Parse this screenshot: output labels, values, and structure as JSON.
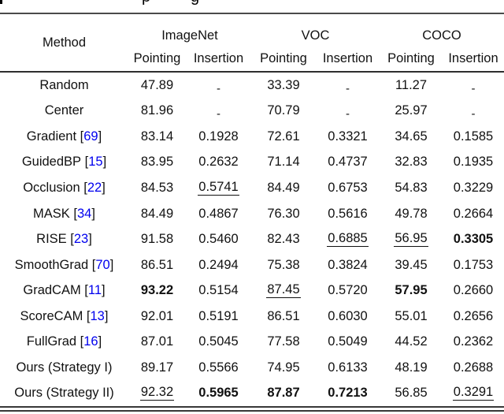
{
  "colors": {
    "citation": "#0000ee",
    "text": "#111111"
  },
  "caption_fragments": [
    {
      "char": "p"
    },
    {
      "char": "g"
    }
  ],
  "table": {
    "method_header": "Method",
    "groups": [
      {
        "label": "ImageNet"
      },
      {
        "label": "VOC"
      },
      {
        "label": "COCO"
      }
    ],
    "sub_headers": [
      "Pointing",
      "Insertion"
    ],
    "rows": [
      {
        "method": "Random",
        "cite": null,
        "values": [
          {
            "v": "47.89"
          },
          {
            "v": "-"
          },
          {
            "v": "33.39"
          },
          {
            "v": "-"
          },
          {
            "v": "11.27"
          },
          {
            "v": "-"
          }
        ]
      },
      {
        "method": "Center",
        "cite": null,
        "values": [
          {
            "v": "81.96"
          },
          {
            "v": "-"
          },
          {
            "v": "70.79"
          },
          {
            "v": "-"
          },
          {
            "v": "25.97"
          },
          {
            "v": "-"
          }
        ]
      },
      {
        "method": "Gradient",
        "cite": "69",
        "values": [
          {
            "v": "83.14"
          },
          {
            "v": "0.1928"
          },
          {
            "v": "72.61"
          },
          {
            "v": "0.3321"
          },
          {
            "v": "34.65"
          },
          {
            "v": "0.1585"
          }
        ]
      },
      {
        "method": "GuidedBP",
        "cite": "15",
        "values": [
          {
            "v": "83.95"
          },
          {
            "v": "0.2632"
          },
          {
            "v": "71.14"
          },
          {
            "v": "0.4737"
          },
          {
            "v": "32.83"
          },
          {
            "v": "0.1935"
          }
        ]
      },
      {
        "method": "Occlusion",
        "cite": "22",
        "values": [
          {
            "v": "84.53"
          },
          {
            "v": "0.5741",
            "u": true
          },
          {
            "v": "84.49"
          },
          {
            "v": "0.6753"
          },
          {
            "v": "54.83"
          },
          {
            "v": "0.3229"
          }
        ]
      },
      {
        "method": "MASK",
        "cite": "34",
        "values": [
          {
            "v": "84.49"
          },
          {
            "v": "0.4867"
          },
          {
            "v": "76.30"
          },
          {
            "v": "0.5616"
          },
          {
            "v": "49.78"
          },
          {
            "v": "0.2664"
          }
        ]
      },
      {
        "method": "RISE",
        "cite": "23",
        "values": [
          {
            "v": "91.58"
          },
          {
            "v": "0.5460"
          },
          {
            "v": "82.43"
          },
          {
            "v": "0.6885",
            "u": true
          },
          {
            "v": "56.95",
            "u": true
          },
          {
            "v": "0.3305",
            "b": true
          }
        ]
      },
      {
        "method": "SmoothGrad",
        "cite": "70",
        "values": [
          {
            "v": "86.51"
          },
          {
            "v": "0.2494"
          },
          {
            "v": "75.38"
          },
          {
            "v": "0.3824"
          },
          {
            "v": "39.45"
          },
          {
            "v": "0.1753"
          }
        ]
      },
      {
        "method": "GradCAM",
        "cite": "11",
        "values": [
          {
            "v": "93.22",
            "b": true
          },
          {
            "v": "0.5154"
          },
          {
            "v": "87.45",
            "u": true
          },
          {
            "v": "0.5720"
          },
          {
            "v": "57.95",
            "b": true
          },
          {
            "v": "0.2660"
          }
        ]
      },
      {
        "method": "ScoreCAM",
        "cite": "13",
        "values": [
          {
            "v": "92.01"
          },
          {
            "v": "0.5191"
          },
          {
            "v": "86.51"
          },
          {
            "v": "0.6030"
          },
          {
            "v": "55.01"
          },
          {
            "v": "0.2656"
          }
        ]
      },
      {
        "method": "FullGrad",
        "cite": "16",
        "values": [
          {
            "v": "87.01"
          },
          {
            "v": "0.5045"
          },
          {
            "v": "77.58"
          },
          {
            "v": "0.5049"
          },
          {
            "v": "44.52"
          },
          {
            "v": "0.2362"
          }
        ]
      },
      {
        "method": "Ours (Strategy I)",
        "cite": null,
        "values": [
          {
            "v": "89.17"
          },
          {
            "v": "0.5566"
          },
          {
            "v": "74.95"
          },
          {
            "v": "0.6133"
          },
          {
            "v": "48.19"
          },
          {
            "v": "0.2688"
          }
        ]
      },
      {
        "method": "Ours (Strategy II)",
        "cite": null,
        "values": [
          {
            "v": "92.32",
            "u": true
          },
          {
            "v": "0.5965",
            "b": true
          },
          {
            "v": "87.87",
            "b": true
          },
          {
            "v": "0.7213",
            "b": true
          },
          {
            "v": "56.85"
          },
          {
            "v": "0.3291",
            "u": true
          }
        ]
      }
    ]
  }
}
